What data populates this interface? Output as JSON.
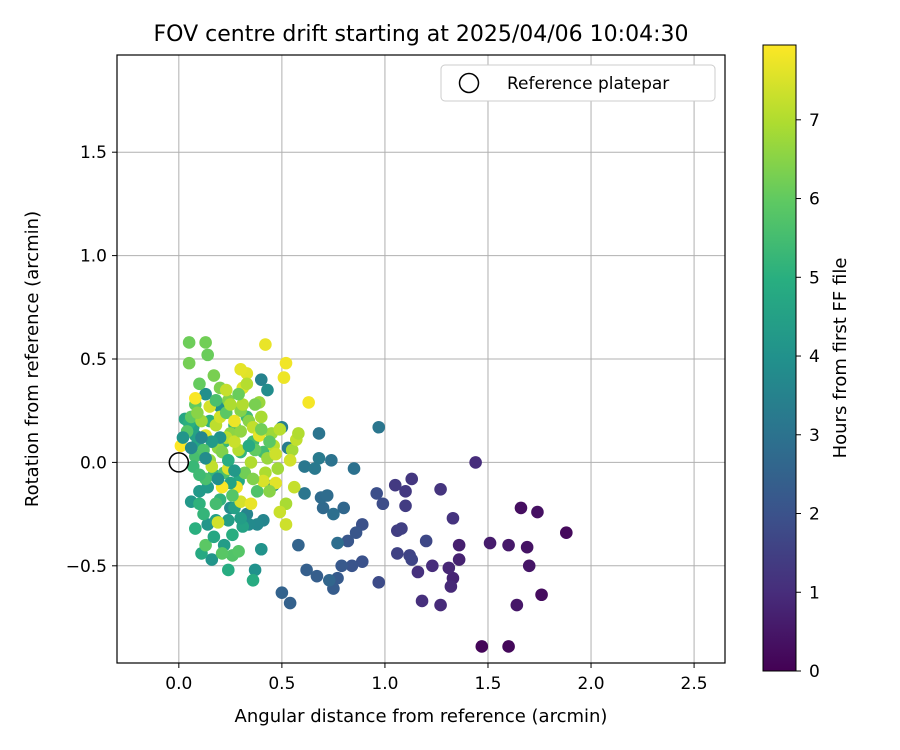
{
  "chart_data": {
    "type": "scatter",
    "title": "FOV centre drift starting at 2025/04/06 10:04:30",
    "xlabel": "Angular distance from reference (arcmin)",
    "ylabel": "Rotation from reference (arcmin)",
    "xlim": [
      -0.3,
      2.65
    ],
    "ylim": [
      -0.97,
      1.97
    ],
    "xticks": [
      0.0,
      0.5,
      1.0,
      1.5,
      2.0,
      2.5
    ],
    "xtick_labels": [
      "0.0",
      "0.5",
      "1.0",
      "1.5",
      "2.0",
      "2.5"
    ],
    "yticks": [
      -0.5,
      0.0,
      0.5,
      1.0,
      1.5
    ],
    "ytick_labels": [
      "−0.5",
      "0.0",
      "0.5",
      "1.0",
      "1.5"
    ],
    "grid": true,
    "legend": {
      "position": "top-right",
      "entries": [
        "Reference platepar"
      ]
    },
    "reference_point": {
      "x": 0.0,
      "y": 0.0
    },
    "colorbar": {
      "label": "Hours from first FF file",
      "colormap": "viridis",
      "range": [
        0,
        7.95
      ],
      "ticks": [
        0,
        1,
        2,
        3,
        4,
        5,
        6,
        7
      ],
      "tick_labels": [
        "0",
        "1",
        "2",
        "3",
        "4",
        "5",
        "6",
        "7"
      ]
    },
    "points": [
      {
        "x": 1.47,
        "y": -0.89,
        "h": 0.1
      },
      {
        "x": 1.6,
        "y": -0.89,
        "h": 0.15
      },
      {
        "x": 1.88,
        "y": -0.34,
        "h": 0.2
      },
      {
        "x": 1.76,
        "y": -0.64,
        "h": 0.25
      },
      {
        "x": 1.66,
        "y": -0.22,
        "h": 0.3
      },
      {
        "x": 1.74,
        "y": -0.24,
        "h": 0.35
      },
      {
        "x": 1.69,
        "y": -0.41,
        "h": 0.4
      },
      {
        "x": 1.7,
        "y": -0.5,
        "h": 0.45
      },
      {
        "x": 1.64,
        "y": -0.69,
        "h": 0.5
      },
      {
        "x": 1.6,
        "y": -0.4,
        "h": 0.55
      },
      {
        "x": 1.51,
        "y": -0.39,
        "h": 0.6
      },
      {
        "x": 1.36,
        "y": -0.4,
        "h": 0.7
      },
      {
        "x": 1.36,
        "y": -0.47,
        "h": 0.75
      },
      {
        "x": 1.33,
        "y": -0.56,
        "h": 0.8
      },
      {
        "x": 1.31,
        "y": -0.51,
        "h": 0.85
      },
      {
        "x": 1.32,
        "y": -0.6,
        "h": 0.9
      },
      {
        "x": 1.27,
        "y": -0.69,
        "h": 0.95
      },
      {
        "x": 1.23,
        "y": -0.5,
        "h": 1.0
      },
      {
        "x": 1.18,
        "y": -0.67,
        "h": 1.05
      },
      {
        "x": 1.16,
        "y": -0.53,
        "h": 1.1
      },
      {
        "x": 1.44,
        "y": 0.0,
        "h": 1.0
      },
      {
        "x": 1.33,
        "y": -0.27,
        "h": 1.15
      },
      {
        "x": 1.27,
        "y": -0.13,
        "h": 1.2
      },
      {
        "x": 1.13,
        "y": -0.08,
        "h": 1.25
      },
      {
        "x": 1.1,
        "y": -0.14,
        "h": 1.3
      },
      {
        "x": 1.05,
        "y": -0.11,
        "h": 1.35
      },
      {
        "x": 1.1,
        "y": -0.21,
        "h": 1.4
      },
      {
        "x": 1.06,
        "y": -0.33,
        "h": 1.45
      },
      {
        "x": 1.08,
        "y": -0.32,
        "h": 1.5
      },
      {
        "x": 1.06,
        "y": -0.44,
        "h": 1.55
      },
      {
        "x": 1.12,
        "y": -0.45,
        "h": 1.6
      },
      {
        "x": 1.13,
        "y": -0.47,
        "h": 1.65
      },
      {
        "x": 1.2,
        "y": -0.38,
        "h": 1.7
      },
      {
        "x": 0.97,
        "y": -0.58,
        "h": 1.8
      },
      {
        "x": 0.99,
        "y": -0.2,
        "h": 1.85
      },
      {
        "x": 0.96,
        "y": -0.15,
        "h": 1.9
      },
      {
        "x": 0.89,
        "y": -0.3,
        "h": 1.95
      },
      {
        "x": 0.89,
        "y": -0.48,
        "h": 2.0
      },
      {
        "x": 0.84,
        "y": -0.5,
        "h": 2.05
      },
      {
        "x": 0.86,
        "y": -0.34,
        "h": 2.1
      },
      {
        "x": 0.82,
        "y": -0.38,
        "h": 2.15
      },
      {
        "x": 0.79,
        "y": -0.5,
        "h": 2.2
      },
      {
        "x": 0.77,
        "y": -0.56,
        "h": 2.25
      },
      {
        "x": 0.75,
        "y": -0.61,
        "h": 2.3
      },
      {
        "x": 0.67,
        "y": -0.55,
        "h": 2.35
      },
      {
        "x": 0.62,
        "y": -0.52,
        "h": 2.4
      },
      {
        "x": 0.54,
        "y": -0.68,
        "h": 2.45
      },
      {
        "x": 0.5,
        "y": -0.63,
        "h": 2.5
      },
      {
        "x": 0.58,
        "y": -0.4,
        "h": 2.55
      },
      {
        "x": 0.73,
        "y": -0.57,
        "h": 2.6
      },
      {
        "x": 0.8,
        "y": -0.22,
        "h": 2.65
      },
      {
        "x": 0.7,
        "y": -0.22,
        "h": 2.7
      },
      {
        "x": 0.69,
        "y": -0.17,
        "h": 2.75
      },
      {
        "x": 0.72,
        "y": -0.16,
        "h": 2.8
      },
      {
        "x": 0.77,
        "y": -0.39,
        "h": 2.85
      },
      {
        "x": 0.75,
        "y": -0.25,
        "h": 2.9
      },
      {
        "x": 0.85,
        "y": -0.03,
        "h": 2.95
      },
      {
        "x": 0.74,
        "y": 0.01,
        "h": 3.0
      },
      {
        "x": 0.68,
        "y": 0.14,
        "h": 3.05
      },
      {
        "x": 0.97,
        "y": 0.17,
        "h": 3.1
      },
      {
        "x": 0.61,
        "y": -0.15,
        "h": 3.1
      },
      {
        "x": 0.61,
        "y": -0.02,
        "h": 3.15
      },
      {
        "x": 0.66,
        "y": -0.03,
        "h": 3.2
      },
      {
        "x": 0.68,
        "y": 0.02,
        "h": 3.25
      },
      {
        "x": 0.53,
        "y": 0.07,
        "h": 3.3
      },
      {
        "x": 0.5,
        "y": 0.17,
        "h": 3.4
      },
      {
        "x": 0.4,
        "y": 0.4,
        "h": 3.5
      },
      {
        "x": 0.33,
        "y": -0.25,
        "h": 3.55
      },
      {
        "x": 0.41,
        "y": -0.28,
        "h": 3.6
      },
      {
        "x": 0.46,
        "y": -0.11,
        "h": 3.65
      },
      {
        "x": 0.38,
        "y": -0.3,
        "h": 3.7
      },
      {
        "x": 0.34,
        "y": -0.3,
        "h": 3.75
      },
      {
        "x": 0.25,
        "y": -0.22,
        "h": 3.8
      },
      {
        "x": 0.43,
        "y": 0.35,
        "h": 3.85
      },
      {
        "x": 0.13,
        "y": 0.33,
        "h": 3.9
      },
      {
        "x": 0.2,
        "y": 0.27,
        "h": 3.95
      },
      {
        "x": 0.37,
        "y": -0.52,
        "h": 4.0
      },
      {
        "x": 0.4,
        "y": -0.42,
        "h": 4.05
      },
      {
        "x": 0.16,
        "y": -0.47,
        "h": 4.1
      },
      {
        "x": 0.14,
        "y": -0.3,
        "h": 4.15
      },
      {
        "x": 0.06,
        "y": -0.19,
        "h": 4.2
      },
      {
        "x": 0.1,
        "y": -0.14,
        "h": 4.25
      },
      {
        "x": 0.14,
        "y": -0.12,
        "h": 4.3
      },
      {
        "x": 0.22,
        "y": -0.4,
        "h": 4.35
      },
      {
        "x": 0.24,
        "y": -0.28,
        "h": 4.4
      },
      {
        "x": 0.18,
        "y": -0.28,
        "h": 4.45
      },
      {
        "x": 0.27,
        "y": -0.22,
        "h": 4.5
      },
      {
        "x": 0.31,
        "y": -0.31,
        "h": 4.55
      },
      {
        "x": 0.07,
        "y": 0.17,
        "h": 4.6
      },
      {
        "x": 0.03,
        "y": 0.21,
        "h": 4.65
      },
      {
        "x": 0.09,
        "y": 0.09,
        "h": 4.7
      },
      {
        "x": 0.29,
        "y": -0.09,
        "h": 4.75
      },
      {
        "x": 0.11,
        "y": -0.44,
        "h": 4.8
      },
      {
        "x": 0.36,
        "y": -0.57,
        "h": 4.85
      },
      {
        "x": 0.24,
        "y": -0.52,
        "h": 4.9
      },
      {
        "x": 0.26,
        "y": -0.35,
        "h": 4.95
      },
      {
        "x": 0.05,
        "y": 0.19,
        "h": 5.0
      },
      {
        "x": 0.15,
        "y": 0.2,
        "h": 5.05
      },
      {
        "x": 0.1,
        "y": -0.2,
        "h": 5.1
      },
      {
        "x": 0.2,
        "y": -0.18,
        "h": 5.15
      },
      {
        "x": 0.17,
        "y": -0.06,
        "h": 5.2
      },
      {
        "x": 0.3,
        "y": 0.05,
        "h": 5.25
      },
      {
        "x": 0.22,
        "y": 0.1,
        "h": 5.3
      },
      {
        "x": 0.27,
        "y": 0.18,
        "h": 5.35
      },
      {
        "x": 0.33,
        "y": 0.22,
        "h": 5.4
      },
      {
        "x": 0.36,
        "y": 0.1,
        "h": 5.45
      },
      {
        "x": 0.41,
        "y": 0.05,
        "h": 5.5
      },
      {
        "x": 0.08,
        "y": 0.03,
        "h": 5.55
      },
      {
        "x": 0.13,
        "y": -0.08,
        "h": 5.6
      },
      {
        "x": 0.22,
        "y": -0.05,
        "h": 5.65
      },
      {
        "x": 0.38,
        "y": -0.14,
        "h": 5.7
      },
      {
        "x": 0.26,
        "y": -0.45,
        "h": 5.75
      },
      {
        "x": 0.29,
        "y": -0.43,
        "h": 5.8
      },
      {
        "x": 0.21,
        "y": -0.44,
        "h": 5.85
      },
      {
        "x": 0.13,
        "y": -0.4,
        "h": 5.9
      },
      {
        "x": 0.06,
        "y": 0.22,
        "h": 5.95
      },
      {
        "x": 0.08,
        "y": 0.28,
        "h": 6.0
      },
      {
        "x": 0.1,
        "y": 0.38,
        "h": 6.05
      },
      {
        "x": 0.14,
        "y": 0.52,
        "h": 6.1
      },
      {
        "x": 0.05,
        "y": 0.58,
        "h": 6.15
      },
      {
        "x": 0.13,
        "y": 0.58,
        "h": 6.2
      },
      {
        "x": 0.05,
        "y": 0.48,
        "h": 6.25
      },
      {
        "x": 0.17,
        "y": 0.42,
        "h": 6.3
      },
      {
        "x": 0.2,
        "y": 0.36,
        "h": 6.35
      },
      {
        "x": 0.24,
        "y": 0.3,
        "h": 6.4
      },
      {
        "x": 0.3,
        "y": 0.25,
        "h": 6.45
      },
      {
        "x": 0.34,
        "y": 0.2,
        "h": 6.5
      },
      {
        "x": 0.25,
        "y": 0.14,
        "h": 6.55
      },
      {
        "x": 0.19,
        "y": 0.07,
        "h": 6.6
      },
      {
        "x": 0.15,
        "y": 0.01,
        "h": 6.65
      },
      {
        "x": 0.39,
        "y": 0.29,
        "h": 6.7
      },
      {
        "x": 0.45,
        "y": 0.14,
        "h": 6.75
      },
      {
        "x": 0.48,
        "y": -0.03,
        "h": 6.8
      },
      {
        "x": 0.55,
        "y": 0.06,
        "h": 6.85
      },
      {
        "x": 0.52,
        "y": -0.2,
        "h": 6.9
      },
      {
        "x": 0.42,
        "y": -0.05,
        "h": 6.95
      },
      {
        "x": 0.35,
        "y": 0.0,
        "h": 7.0
      },
      {
        "x": 0.29,
        "y": 0.06,
        "h": 7.05
      },
      {
        "x": 0.23,
        "y": 0.12,
        "h": 7.1
      },
      {
        "x": 0.18,
        "y": 0.18,
        "h": 7.15
      },
      {
        "x": 0.57,
        "y": 0.11,
        "h": 7.2
      },
      {
        "x": 0.56,
        "y": -0.12,
        "h": 7.25
      },
      {
        "x": 0.49,
        "y": -0.24,
        "h": 7.3
      },
      {
        "x": 0.52,
        "y": -0.3,
        "h": 7.35
      },
      {
        "x": 0.19,
        "y": -0.29,
        "h": 7.4
      },
      {
        "x": 0.3,
        "y": -0.19,
        "h": 7.45
      },
      {
        "x": 0.24,
        "y": -0.03,
        "h": 7.5
      },
      {
        "x": 0.31,
        "y": 0.36,
        "h": 7.55
      },
      {
        "x": 0.33,
        "y": 0.43,
        "h": 7.6
      },
      {
        "x": 0.3,
        "y": 0.45,
        "h": 7.65
      },
      {
        "x": 0.42,
        "y": 0.57,
        "h": 7.7
      },
      {
        "x": 0.51,
        "y": 0.41,
        "h": 7.75
      },
      {
        "x": 0.52,
        "y": 0.48,
        "h": 7.8
      },
      {
        "x": 0.63,
        "y": 0.29,
        "h": 7.85
      },
      {
        "x": 0.08,
        "y": 0.31,
        "h": 7.9
      },
      {
        "x": 0.01,
        "y": 0.08,
        "h": 7.95
      },
      {
        "x": 0.13,
        "y": 0.13,
        "h": 7.6
      },
      {
        "x": 0.2,
        "y": 0.22,
        "h": 7.4
      },
      {
        "x": 0.27,
        "y": 0.1,
        "h": 7.3
      },
      {
        "x": 0.36,
        "y": 0.17,
        "h": 7.2
      },
      {
        "x": 0.46,
        "y": 0.08,
        "h": 7.1
      },
      {
        "x": 0.58,
        "y": 0.14,
        "h": 7.0
      },
      {
        "x": 0.41,
        "y": -0.09,
        "h": 7.5
      },
      {
        "x": 0.28,
        "y": -0.12,
        "h": 7.8
      },
      {
        "x": 0.47,
        "y": -0.1,
        "h": 7.6
      },
      {
        "x": 0.16,
        "y": -0.02,
        "h": 7.2
      },
      {
        "x": 0.31,
        "y": 0.28,
        "h": 7.0
      },
      {
        "x": 0.11,
        "y": 0.2,
        "h": 6.8
      },
      {
        "x": 0.21,
        "y": 0.05,
        "h": 6.4
      },
      {
        "x": 0.32,
        "y": -0.05,
        "h": 6.2
      },
      {
        "x": 0.37,
        "y": 0.06,
        "h": 6.0
      },
      {
        "x": 0.26,
        "y": -0.16,
        "h": 5.8
      },
      {
        "x": 0.18,
        "y": -0.2,
        "h": 5.5
      },
      {
        "x": 0.12,
        "y": -0.25,
        "h": 5.2
      },
      {
        "x": 0.23,
        "y": 0.24,
        "h": 5.9
      },
      {
        "x": 0.3,
        "y": 0.15,
        "h": 6.6
      },
      {
        "x": 0.4,
        "y": 0.22,
        "h": 6.9
      },
      {
        "x": 0.44,
        "y": -0.14,
        "h": 6.5
      },
      {
        "x": 0.2,
        "y": 0.12,
        "h": 4.0
      },
      {
        "x": 0.16,
        "y": 0.1,
        "h": 4.3
      },
      {
        "x": 0.08,
        "y": 0.13,
        "h": 4.5
      },
      {
        "x": 0.25,
        "y": -0.1,
        "h": 4.6
      },
      {
        "x": 0.34,
        "y": 0.08,
        "h": 4.8
      },
      {
        "x": 0.07,
        "y": -0.02,
        "h": 5.3
      },
      {
        "x": 0.12,
        "y": 0.06,
        "h": 5.7
      },
      {
        "x": 0.29,
        "y": 0.33,
        "h": 6.1
      },
      {
        "x": 0.37,
        "y": 0.28,
        "h": 6.3
      },
      {
        "x": 0.43,
        "y": 0.02,
        "h": 6.7
      },
      {
        "x": 0.49,
        "y": 0.16,
        "h": 7.1
      },
      {
        "x": 0.54,
        "y": 0.01,
        "h": 7.4
      },
      {
        "x": 0.35,
        "y": -0.2,
        "h": 7.7
      },
      {
        "x": 0.21,
        "y": -0.12,
        "h": 7.9
      },
      {
        "x": 0.27,
        "y": 0.2,
        "h": 7.75
      },
      {
        "x": 0.39,
        "y": 0.13,
        "h": 7.65
      },
      {
        "x": 0.15,
        "y": 0.27,
        "h": 7.45
      },
      {
        "x": 0.23,
        "y": 0.35,
        "h": 7.25
      },
      {
        "x": 0.33,
        "y": 0.38,
        "h": 7.05
      },
      {
        "x": 0.4,
        "y": 0.16,
        "h": 6.2
      },
      {
        "x": 0.18,
        "y": 0.3,
        "h": 5.6
      },
      {
        "x": 0.1,
        "y": -0.06,
        "h": 5.4
      },
      {
        "x": 0.24,
        "y": 0.01,
        "h": 4.9
      },
      {
        "x": 0.3,
        "y": -0.27,
        "h": 4.4
      },
      {
        "x": 0.17,
        "y": -0.36,
        "h": 4.7
      },
      {
        "x": 0.08,
        "y": -0.32,
        "h": 5.0
      },
      {
        "x": 0.13,
        "y": 0.02,
        "h": 3.8
      },
      {
        "x": 0.19,
        "y": -0.08,
        "h": 3.9
      },
      {
        "x": 0.27,
        "y": -0.04,
        "h": 4.2
      },
      {
        "x": 0.44,
        "y": 0.1,
        "h": 5.9
      },
      {
        "x": 0.36,
        "y": -0.08,
        "h": 6.4
      },
      {
        "x": 0.47,
        "y": 0.04,
        "h": 7.35
      },
      {
        "x": 0.25,
        "y": 0.28,
        "h": 6.95
      },
      {
        "x": 0.09,
        "y": 0.24,
        "h": 6.5
      },
      {
        "x": 0.04,
        "y": 0.15,
        "h": 5.8
      },
      {
        "x": 0.02,
        "y": 0.12,
        "h": 4.1
      },
      {
        "x": 0.06,
        "y": 0.07,
        "h": 3.7
      },
      {
        "x": 0.11,
        "y": 0.12,
        "h": 3.6
      }
    ]
  }
}
